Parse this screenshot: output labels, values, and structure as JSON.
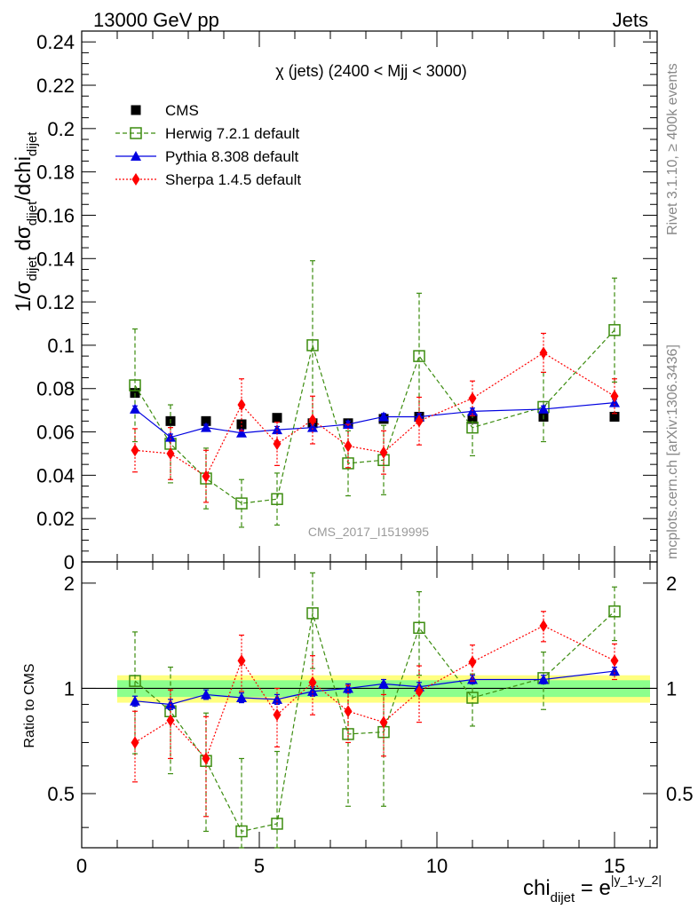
{
  "header": {
    "energy_label": "13000 GeV pp",
    "process_label": "Jets",
    "plot_title": "χ (jets) (2400 < Mjj < 3000)",
    "analysis_id": "CMS_2017_I1519995",
    "side_label_top": "Rivet 3.1.10, ≥ 400k events",
    "side_label_bottom": "mcplots.cern.ch [arXiv:1306.3436]"
  },
  "axes": {
    "x_label_main": "chi",
    "x_label_sub": "dijet",
    "x_label_eq": " = e",
    "x_label_sup": "|y_1-y_2|",
    "y_label_main": "1/σ",
    "y_label_sub1": "dijet",
    "y_label_mid": " dσ",
    "y_label_sub2": "dijet",
    "y_label_end": "/dchi",
    "y_label_sub3": "dijet",
    "ratio_label": "Ratio to CMS"
  },
  "chart_data": {
    "type": "scatter",
    "x_range": [
      0,
      16.2
    ],
    "x_ticks": [
      0,
      5,
      10,
      15
    ],
    "main": {
      "ylim": [
        0,
        0.245
      ],
      "y_ticks": [
        0,
        0.02,
        0.04,
        0.06,
        0.08,
        0.1,
        0.12,
        0.14,
        0.16,
        0.18,
        0.2,
        0.22,
        0.24
      ],
      "y_tick_labels": [
        "0",
        "0.02",
        "0.04",
        "0.06",
        "0.08",
        "0.1",
        "0.12",
        "0.14",
        "0.16",
        "0.18",
        "0.2",
        "0.22",
        "0.24"
      ]
    },
    "ratio": {
      "ylim": [
        0.35,
        2.3
      ],
      "y_ticks": [
        0.5,
        1,
        2
      ],
      "y_tick_labels": [
        "0.5",
        "1",
        "2"
      ]
    },
    "x": [
      1.5,
      2.5,
      3.5,
      4.5,
      5.5,
      6.5,
      7.5,
      8.5,
      9.5,
      11,
      13,
      15
    ],
    "x_bin_edges": [
      1,
      2,
      3,
      4,
      5,
      6,
      7,
      8,
      9,
      10,
      12,
      14,
      16
    ],
    "series": [
      {
        "name": "CMS",
        "color": "#000000",
        "marker": "square",
        "values": [
          0.078,
          0.065,
          0.065,
          0.0635,
          0.0665,
          0.064,
          0.064,
          0.066,
          0.067,
          0.066,
          0.067,
          0.067
        ],
        "errors": [
          0.001,
          0.001,
          0.001,
          0.001,
          0.001,
          0.001,
          0.001,
          0.001,
          0.001,
          0.001,
          0.001,
          0.001
        ]
      },
      {
        "name": "Herwig 7.2.1 default",
        "color": "#3c8c0f",
        "marker": "open-square",
        "line": "dashed",
        "values": [
          0.0815,
          0.0545,
          0.0385,
          0.027,
          0.029,
          0.1,
          0.0455,
          0.047,
          0.095,
          0.062,
          0.0715,
          0.107
        ],
        "errors": [
          0.026,
          0.018,
          0.014,
          0.011,
          0.012,
          0.039,
          0.015,
          0.016,
          0.029,
          0.013,
          0.016,
          0.024
        ],
        "ratio": [
          1.05,
          0.86,
          0.62,
          0.39,
          0.41,
          1.64,
          0.74,
          0.75,
          1.49,
          0.94,
          1.07,
          1.66
        ],
        "ratio_errors": [
          0.4,
          0.29,
          0.23,
          0.24,
          0.25,
          0.5,
          0.28,
          0.29,
          0.4,
          0.16,
          0.2,
          0.29
        ]
      },
      {
        "name": "Pythia 8.308 default",
        "color": "#0000e0",
        "marker": "triangle",
        "line": "solid",
        "values": [
          0.0705,
          0.0575,
          0.062,
          0.0595,
          0.061,
          0.062,
          0.0635,
          0.067,
          0.067,
          0.0695,
          0.0705,
          0.0735
        ],
        "errors": [
          0.0015,
          0.0015,
          0.0015,
          0.0015,
          0.0015,
          0.0015,
          0.0015,
          0.0015,
          0.0015,
          0.0015,
          0.0015,
          0.0015
        ],
        "ratio": [
          0.92,
          0.9,
          0.96,
          0.94,
          0.93,
          0.98,
          1.0,
          1.03,
          1.01,
          1.06,
          1.06,
          1.12
        ],
        "ratio_errors": [
          0.03,
          0.03,
          0.03,
          0.03,
          0.03,
          0.03,
          0.03,
          0.03,
          0.03,
          0.03,
          0.03,
          0.03
        ]
      },
      {
        "name": "Sherpa 1.4.5 default",
        "color": "#ff0000",
        "marker": "diamond",
        "line": "dotted",
        "values": [
          0.0515,
          0.05,
          0.0395,
          0.0725,
          0.0545,
          0.0655,
          0.0535,
          0.0505,
          0.065,
          0.0755,
          0.0965,
          0.0765
        ],
        "errors": [
          0.01,
          0.012,
          0.012,
          0.012,
          0.01,
          0.011,
          0.01,
          0.01,
          0.011,
          0.008,
          0.009,
          0.008
        ],
        "ratio": [
          0.7,
          0.81,
          0.63,
          1.2,
          0.84,
          1.04,
          0.86,
          0.8,
          0.98,
          1.19,
          1.51,
          1.2
        ],
        "ratio_errors": [
          0.16,
          0.18,
          0.2,
          0.22,
          0.16,
          0.2,
          0.16,
          0.16,
          0.18,
          0.14,
          0.15,
          0.14
        ]
      }
    ],
    "ratio_band": {
      "outer_halfwidth": [
        0.09,
        0.09,
        0.09,
        0.09,
        0.09,
        0.09,
        0.09,
        0.09,
        0.09,
        0.09,
        0.09,
        0.09
      ],
      "inner_halfwidth": [
        0.055,
        0.055,
        0.055,
        0.055,
        0.055,
        0.055,
        0.055,
        0.055,
        0.055,
        0.055,
        0.055,
        0.055
      ],
      "outer_color": "#ffff80",
      "inner_color": "#8cff8c"
    }
  }
}
